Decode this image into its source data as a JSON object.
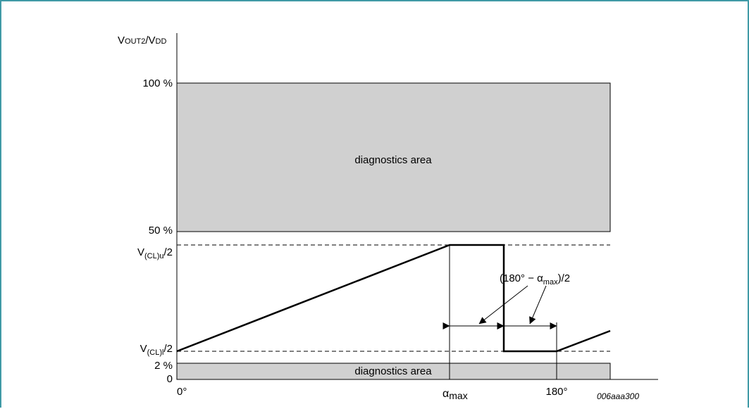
{
  "y_axis": {
    "label": {
      "main": "V",
      "sub1": "OUT2",
      "mid": "/V",
      "sub2": "DD"
    },
    "ticks": {
      "p100": "100 %",
      "p50": "50 %",
      "vclu": {
        "main": "V",
        "sub": "(CL)u",
        "tail": "/2"
      },
      "vcll": {
        "main": "V",
        "sub": "(CL)l",
        "tail": "/2"
      },
      "p2": "2 %",
      "p0": "0"
    }
  },
  "x_axis": {
    "ticks": {
      "deg0": "0°",
      "alpha": {
        "main": "α",
        "sub": "max"
      },
      "deg180": "180°"
    }
  },
  "regions": {
    "upper_diagnostics": "diagnostics area",
    "lower_diagnostics": "diagnostics area"
  },
  "annotation": {
    "pre": "(180° − α",
    "sub": "max",
    "post": ")/2"
  },
  "reference_code": "006aaa300",
  "colors": {
    "region_fill": "#d0d0d0",
    "line": "#000000",
    "frame": "#3f9aa6"
  }
}
